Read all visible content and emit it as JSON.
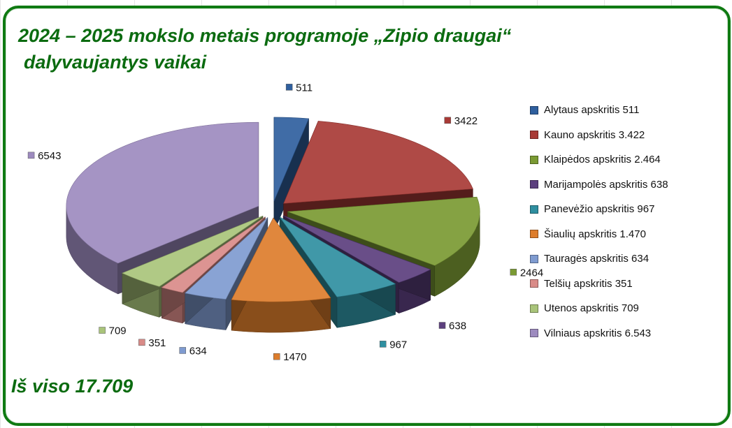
{
  "title_line1": "2024 – 2025 mokslo metais programoje „Zipio draugai“",
  "title_line2": "dalyvaujantys vaikai",
  "total_text": "Iš viso 17.709",
  "chart_data": {
    "type": "pie",
    "title": "2024 – 2025 mokslo metais programoje „Zipio draugai“ dalyvaujantys vaikai",
    "categories": [
      "Alytaus apskritis",
      "Kauno apskritis",
      "Klaipėdos apskritis",
      "Marijampolės apskritis",
      "Panevėžio apskritis",
      "Šiaulių apskritis",
      "Tauragės apskritis",
      "Telšių apskritis",
      "Utenos apskritis",
      "Vilniaus apskritis"
    ],
    "values": [
      511,
      3422,
      2464,
      638,
      967,
      1470,
      634,
      351,
      709,
      6543
    ],
    "data_labels": [
      "511",
      "3422",
      "2464",
      "638",
      "967",
      "1470",
      "634",
      "351",
      "709",
      "6543"
    ],
    "legend_labels": [
      "Alytaus apskritis  511",
      "Kauno apskritis  3.422",
      "Klaipėdos apskritis  2.464",
      "Marijampolės apskritis 638",
      "Panevėžio apskritis 967",
      "Šiaulių apskritis 1.470",
      "Tauragės apskritis 634",
      "Telšių apskritis 351",
      "Utenos apskritis  709",
      "Vilniaus apskritis 6.543"
    ],
    "colors": [
      "#2f5f9e",
      "#a83a36",
      "#7a9a33",
      "#5c3f7e",
      "#2f8fa0",
      "#dd7d2c",
      "#7f9bd0",
      "#d98b88",
      "#a9c47a",
      "#9d8bbf"
    ],
    "legend_position": "right",
    "style": "3d-exploded"
  }
}
